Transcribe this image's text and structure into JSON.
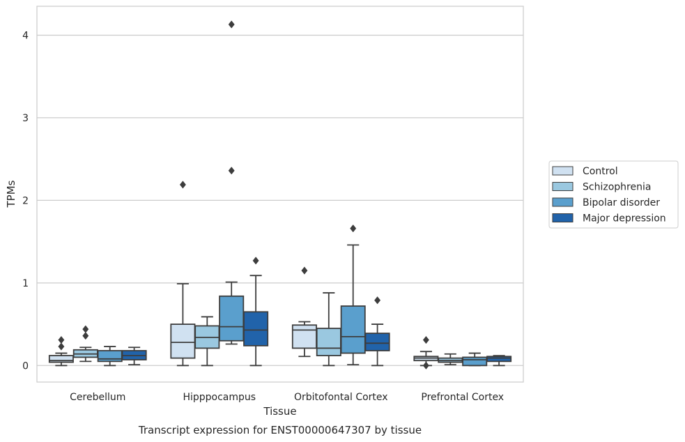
{
  "chart_data": {
    "type": "box",
    "xlabel": "Tissue",
    "ylabel": "TPMs",
    "caption": "Transcript expression for ENST00000647307 by tissue",
    "categories": [
      "Cerebellum",
      "Hipppocampus",
      "Orbitofontal Cortex",
      "Prefrontal Cortex"
    ],
    "y_ticks": [
      0,
      1,
      2,
      3,
      4
    ],
    "ylim": [
      -0.2,
      4.35
    ],
    "grid": "horizontal",
    "legend_position": "right",
    "series": [
      {
        "name": "Control",
        "color": "#d0e1f1",
        "boxes": [
          {
            "whisker_low": 0.0,
            "q1": 0.04,
            "median": 0.06,
            "q3": 0.12,
            "whisker_high": 0.15,
            "outliers": [
              0.31,
              0.23
            ]
          },
          {
            "whisker_low": 0.0,
            "q1": 0.09,
            "median": 0.28,
            "q3": 0.5,
            "whisker_high": 0.99,
            "outliers": [
              2.19
            ]
          },
          {
            "whisker_low": 0.11,
            "q1": 0.21,
            "median": 0.43,
            "q3": 0.49,
            "whisker_high": 0.53,
            "outliers": [
              1.15
            ]
          },
          {
            "whisker_low": 0.0,
            "q1": 0.06,
            "median": 0.09,
            "q3": 0.11,
            "whisker_high": 0.17,
            "outliers": [
              0.31,
              0.0
            ]
          }
        ]
      },
      {
        "name": "Schizophrenia",
        "color": "#9ac8e0",
        "boxes": [
          {
            "whisker_low": 0.05,
            "q1": 0.1,
            "median": 0.14,
            "q3": 0.19,
            "whisker_high": 0.22,
            "outliers": [
              0.44,
              0.36
            ]
          },
          {
            "whisker_low": 0.0,
            "q1": 0.21,
            "median": 0.34,
            "q3": 0.48,
            "whisker_high": 0.59,
            "outliers": []
          },
          {
            "whisker_low": 0.0,
            "q1": 0.12,
            "median": 0.21,
            "q3": 0.45,
            "whisker_high": 0.88,
            "outliers": []
          },
          {
            "whisker_low": 0.01,
            "q1": 0.04,
            "median": 0.06,
            "q3": 0.09,
            "whisker_high": 0.14,
            "outliers": []
          }
        ]
      },
      {
        "name": "Bipolar disorder",
        "color": "#5a9fcd",
        "boxes": [
          {
            "whisker_low": 0.0,
            "q1": 0.05,
            "median": 0.08,
            "q3": 0.18,
            "whisker_high": 0.23,
            "outliers": []
          },
          {
            "whisker_low": 0.26,
            "q1": 0.3,
            "median": 0.47,
            "q3": 0.84,
            "whisker_high": 1.01,
            "outliers": [
              2.36,
              4.13
            ]
          },
          {
            "whisker_low": 0.01,
            "q1": 0.15,
            "median": 0.35,
            "q3": 0.72,
            "whisker_high": 1.46,
            "outliers": [
              1.66
            ]
          },
          {
            "whisker_low": 0.0,
            "q1": 0.0,
            "median": 0.07,
            "q3": 0.1,
            "whisker_high": 0.15,
            "outliers": []
          }
        ]
      },
      {
        "name": "Major depression",
        "color": "#2163aa",
        "boxes": [
          {
            "whisker_low": 0.01,
            "q1": 0.07,
            "median": 0.12,
            "q3": 0.18,
            "whisker_high": 0.22,
            "outliers": []
          },
          {
            "whisker_low": 0.0,
            "q1": 0.24,
            "median": 0.43,
            "q3": 0.65,
            "whisker_high": 1.09,
            "outliers": [
              1.27
            ]
          },
          {
            "whisker_low": 0.0,
            "q1": 0.18,
            "median": 0.27,
            "q3": 0.39,
            "whisker_high": 0.5,
            "outliers": [
              0.79
            ]
          },
          {
            "whisker_low": 0.0,
            "q1": 0.05,
            "median": 0.09,
            "q3": 0.11,
            "whisker_high": 0.12,
            "outliers": []
          }
        ]
      }
    ]
  }
}
